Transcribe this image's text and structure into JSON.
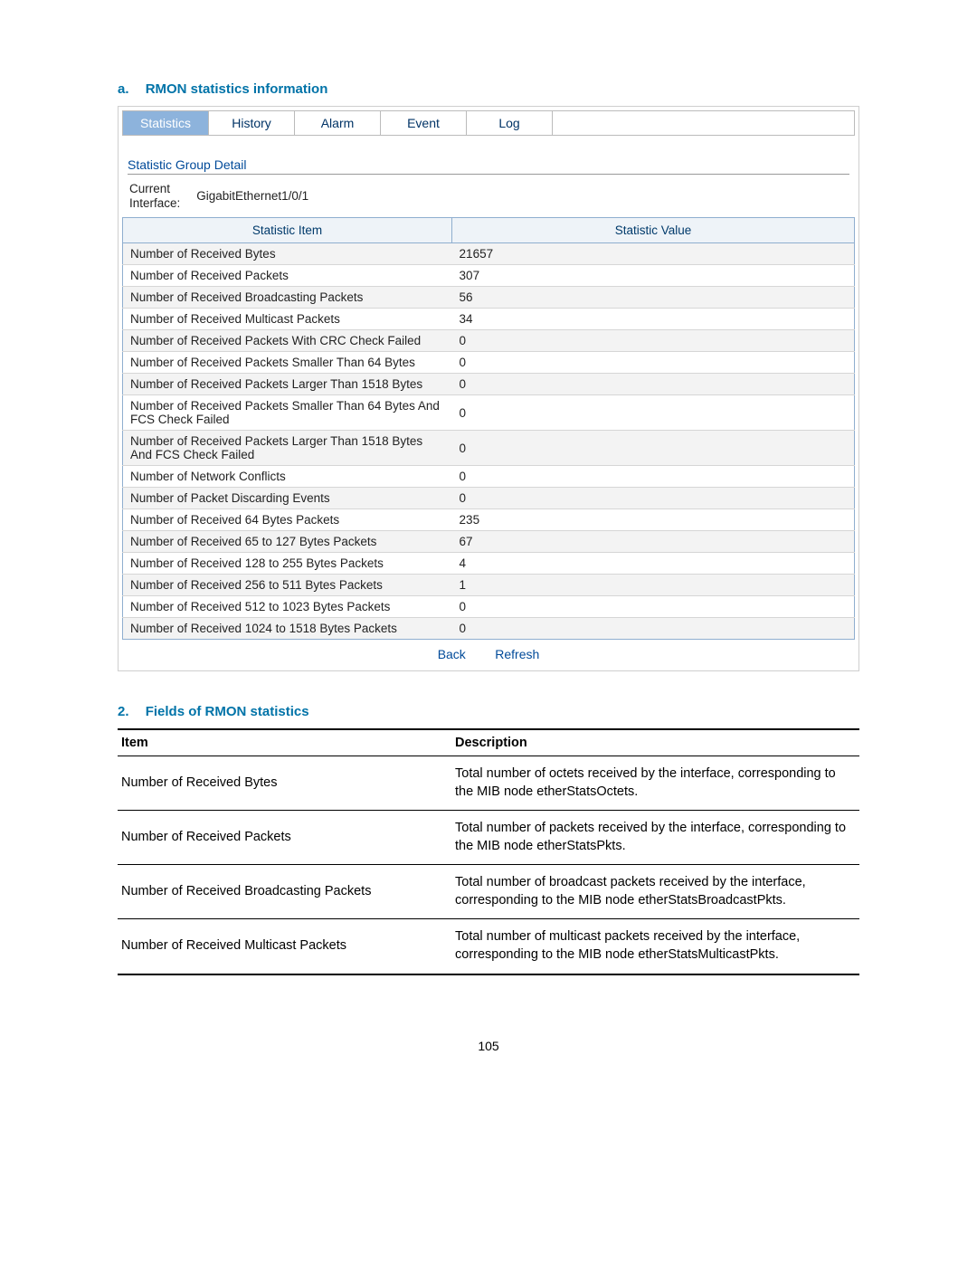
{
  "section_a": {
    "prefix": "a.",
    "title": "RMON statistics information"
  },
  "tabs": {
    "items": [
      "Statistics",
      "History",
      "Alarm",
      "Event",
      "Log"
    ],
    "active_index": 0
  },
  "detail": {
    "heading": "Statistic Group Detail",
    "iface_label_line1": "Current",
    "iface_label_line2": "Interface:",
    "iface_value": "GigabitEthernet1/0/1"
  },
  "stats": {
    "headers": {
      "item": "Statistic Item",
      "value": "Statistic Value"
    },
    "rows": [
      {
        "item": "Number of Received Bytes",
        "value": "21657"
      },
      {
        "item": "Number of Received Packets",
        "value": "307"
      },
      {
        "item": "Number of Received Broadcasting Packets",
        "value": "56"
      },
      {
        "item": "Number of Received Multicast Packets",
        "value": "34"
      },
      {
        "item": "Number of Received Packets With CRC Check Failed",
        "value": "0"
      },
      {
        "item": "Number of Received Packets Smaller Than 64 Bytes",
        "value": "0"
      },
      {
        "item": "Number of Received Packets Larger Than 1518 Bytes",
        "value": "0"
      },
      {
        "item": "Number of Received Packets Smaller Than 64 Bytes And FCS Check Failed",
        "value": "0"
      },
      {
        "item": "Number of Received Packets Larger Than 1518 Bytes And FCS Check Failed",
        "value": "0"
      },
      {
        "item": "Number of Network Conflicts",
        "value": "0"
      },
      {
        "item": "Number of Packet Discarding Events",
        "value": "0"
      },
      {
        "item": "Number of Received 64 Bytes Packets",
        "value": "235"
      },
      {
        "item": "Number of Received 65 to 127 Bytes Packets",
        "value": "67"
      },
      {
        "item": "Number of Received 128 to 255 Bytes Packets",
        "value": "4"
      },
      {
        "item": "Number of Received 256 to 511 Bytes Packets",
        "value": "1"
      },
      {
        "item": "Number of Received 512 to 1023 Bytes Packets",
        "value": "0"
      },
      {
        "item": "Number of Received 1024 to 1518 Bytes Packets",
        "value": "0"
      }
    ]
  },
  "buttons": {
    "back": "Back",
    "refresh": "Refresh"
  },
  "section_2": {
    "prefix": "2.",
    "title": "Fields of RMON statistics"
  },
  "fields": {
    "headers": {
      "item": "Item",
      "desc": "Description"
    },
    "rows": [
      {
        "item": "Number of Received Bytes",
        "desc": "Total number of octets received by the interface, corresponding to the MIB node etherStatsOctets."
      },
      {
        "item": "Number of Received Packets",
        "desc": "Total number of packets received by the interface, corresponding to the MIB node etherStatsPkts."
      },
      {
        "item": "Number of Received Broadcasting Packets",
        "desc": "Total number of broadcast packets received by the interface, corresponding to the MIB node etherStatsBroadcastPkts."
      },
      {
        "item": "Number of Received Multicast Packets",
        "desc": "Total number of multicast packets received by the interface, corresponding to the MIB node etherStatsMulticastPkts."
      }
    ]
  },
  "page_number": "105"
}
